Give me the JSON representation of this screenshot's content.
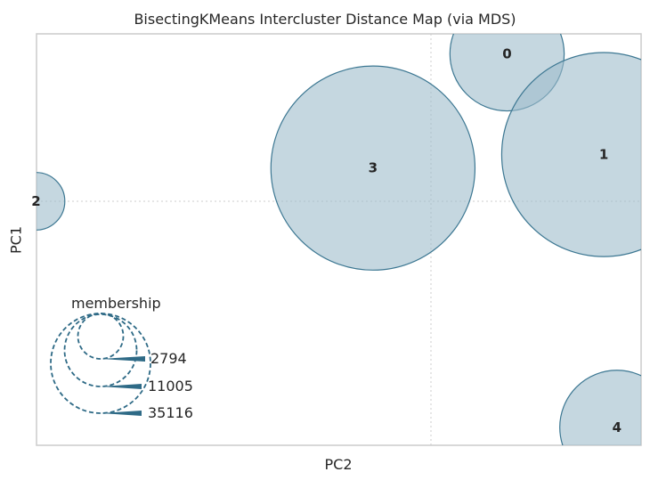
{
  "chart_data": {
    "type": "scatter",
    "title": "BisectingKMeans Intercluster Distance Map (via MDS)",
    "xlabel": "PC2",
    "ylabel": "PC1",
    "grid": true,
    "clusters": [
      {
        "label": "0",
        "x": 0.185,
        "y": 0.36,
        "size": 11005
      },
      {
        "label": "1",
        "x": 0.42,
        "y": 0.114,
        "size": 35116
      },
      {
        "label": "2",
        "x": -0.96,
        "y": 0.0,
        "size": 2794
      },
      {
        "label": "3",
        "x": -0.141,
        "y": 0.081,
        "size": 35116
      },
      {
        "label": "4",
        "x": 0.452,
        "y": -0.552,
        "size": 11005
      }
    ],
    "legend": {
      "title": "membership",
      "values": [
        "2794",
        "11005",
        "35116"
      ]
    },
    "colors": {
      "fill": "#9fbdcc",
      "stroke": "#3c7792",
      "legend": "#2e6a86"
    }
  }
}
